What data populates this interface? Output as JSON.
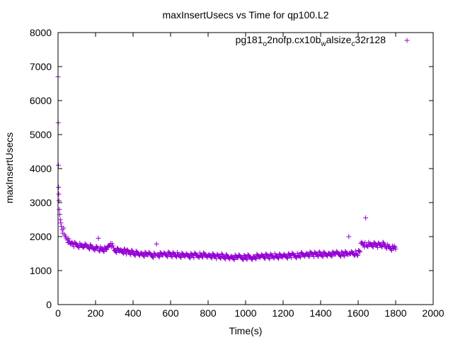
{
  "chart_data": {
    "type": "scatter",
    "title": "maxInsertUsecs vs Time for qp100.L2",
    "xlabel": "Time(s)",
    "ylabel": "maxInsertUsecs",
    "xlim": [
      0,
      2000
    ],
    "ylim": [
      0,
      8000
    ],
    "x_ticks": [
      0,
      200,
      400,
      600,
      800,
      1000,
      1200,
      1400,
      1600,
      1800,
      2000
    ],
    "y_ticks": [
      0,
      1000,
      2000,
      3000,
      4000,
      5000,
      6000,
      7000,
      8000
    ],
    "grid": false,
    "legend_position": "top-right",
    "marker_color": "#9400d3",
    "legend": {
      "parts": [
        {
          "t": "pg181",
          "sub": false
        },
        {
          "t": "o",
          "sub": true
        },
        {
          "t": "2nofp.cx10b",
          "sub": false
        },
        {
          "t": "w",
          "sub": true
        },
        {
          "t": "alsize",
          "sub": false
        },
        {
          "t": "c",
          "sub": true
        },
        {
          "t": "32r128",
          "sub": false
        }
      ]
    },
    "series": [
      {
        "values": [
          [
            0,
            6700
          ],
          [
            1,
            5350
          ],
          [
            2,
            4100
          ],
          [
            3,
            3450
          ],
          [
            4,
            3250
          ],
          [
            5,
            3050
          ],
          [
            7,
            2800
          ],
          [
            9,
            2650
          ],
          [
            12,
            2500
          ],
          [
            15,
            2400
          ],
          [
            18,
            2300
          ],
          [
            22,
            2200
          ],
          [
            26,
            2100
          ],
          [
            30,
            2250
          ],
          [
            35,
            2050
          ],
          [
            40,
            2000
          ],
          [
            45,
            1950
          ],
          [
            50,
            1900
          ],
          [
            60,
            1850
          ],
          [
            70,
            1800
          ],
          [
            80,
            1780
          ],
          [
            100,
            1760
          ],
          [
            120,
            1740
          ],
          [
            140,
            1720
          ],
          [
            160,
            1700
          ],
          [
            180,
            1680
          ],
          [
            200,
            1650
          ],
          [
            215,
            1950
          ],
          [
            230,
            1640
          ],
          [
            260,
            1620
          ],
          [
            280,
            1800
          ],
          [
            300,
            1600
          ],
          [
            330,
            1580
          ],
          [
            360,
            1560
          ],
          [
            400,
            1520
          ],
          [
            440,
            1500
          ],
          [
            480,
            1470
          ],
          [
            520,
            1450
          ],
          [
            525,
            1780
          ],
          [
            560,
            1460
          ],
          [
            600,
            1480
          ],
          [
            640,
            1460
          ],
          [
            680,
            1450
          ],
          [
            720,
            1440
          ],
          [
            760,
            1460
          ],
          [
            800,
            1440
          ],
          [
            840,
            1420
          ],
          [
            880,
            1420
          ],
          [
            920,
            1400
          ],
          [
            960,
            1390
          ],
          [
            1000,
            1390
          ],
          [
            1040,
            1400
          ],
          [
            1080,
            1410
          ],
          [
            1120,
            1420
          ],
          [
            1160,
            1430
          ],
          [
            1200,
            1430
          ],
          [
            1240,
            1440
          ],
          [
            1280,
            1450
          ],
          [
            1320,
            1470
          ],
          [
            1360,
            1480
          ],
          [
            1400,
            1480
          ],
          [
            1440,
            1490
          ],
          [
            1480,
            1490
          ],
          [
            1520,
            1490
          ],
          [
            1550,
            2000
          ],
          [
            1560,
            1500
          ],
          [
            1590,
            1500
          ],
          [
            1610,
            1550
          ],
          [
            1615,
            1800
          ],
          [
            1630,
            1750
          ],
          [
            1640,
            2550
          ],
          [
            1660,
            1760
          ],
          [
            1700,
            1750
          ],
          [
            1740,
            1760
          ],
          [
            1760,
            1700
          ],
          [
            1790,
            1650
          ],
          [
            1800,
            1630
          ]
        ]
      }
    ]
  }
}
